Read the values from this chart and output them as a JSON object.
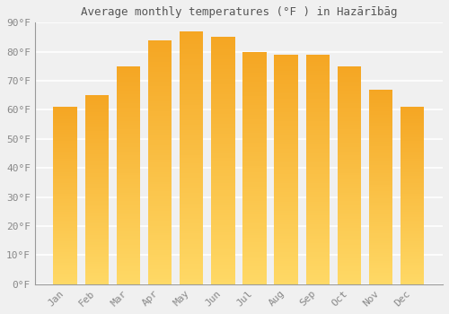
{
  "title": "Average monthly temperatures (°F ) in Hazārībāg",
  "months": [
    "Jan",
    "Feb",
    "Mar",
    "Apr",
    "May",
    "Jun",
    "Jul",
    "Aug",
    "Sep",
    "Oct",
    "Nov",
    "Dec"
  ],
  "values": [
    61,
    65,
    75,
    84,
    87,
    85,
    80,
    79,
    79,
    75,
    67,
    61
  ],
  "bar_color": "#F5A623",
  "bar_color_light": "#FFCC44",
  "ylim": [
    0,
    90
  ],
  "yticks": [
    0,
    10,
    20,
    30,
    40,
    50,
    60,
    70,
    80,
    90
  ],
  "ytick_labels": [
    "0°F",
    "10°F",
    "20°F",
    "30°F",
    "40°F",
    "50°F",
    "60°F",
    "70°F",
    "80°F",
    "90°F"
  ],
  "background_color": "#f0f0f0",
  "grid_color": "#ffffff",
  "title_fontsize": 9,
  "tick_fontsize": 8,
  "tick_color": "#888888",
  "title_color": "#555555"
}
